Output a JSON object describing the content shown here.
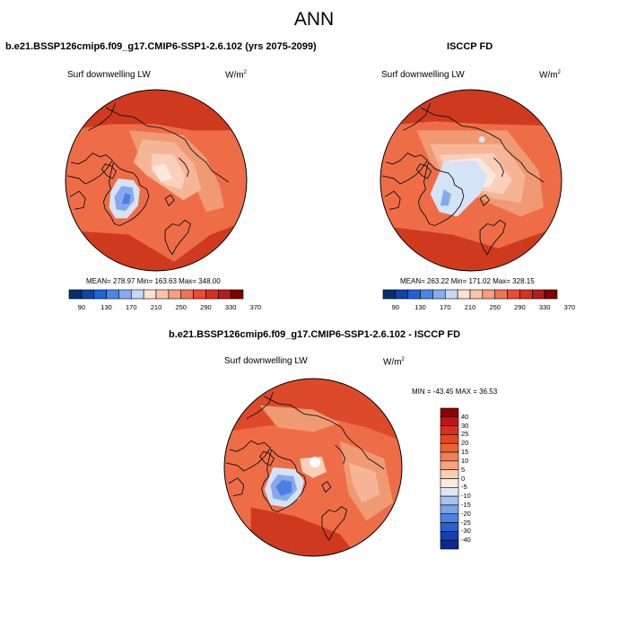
{
  "title": "ANN",
  "panels": [
    {
      "title": "b.e21.BSSP126cmip6.f09_g17.CMIP6-SSP1-2.6.102 (yrs 2075-2099)",
      "variable": "Surf downwelling LW",
      "units_base": "W/m",
      "units_sup": "2",
      "stats": "MEAN= 278.97  Min= 163.63  Max= 348.00"
    },
    {
      "title": "ISCCP FD",
      "variable": "Surf downwelling LW",
      "units_base": "W/m",
      "units_sup": "2",
      "stats": "MEAN= 263.22  Min= 171.02  Max= 328.15"
    },
    {
      "title": "b.e21.BSSP126cmip6.f09_g17.CMIP6-SSP1-2.6.102 - ISCCP FD",
      "variable": "Surf downwelling LW",
      "units_base": "W/m",
      "units_sup": "2",
      "stats": "MIN = -43.45 MAX =  36.53"
    }
  ],
  "colorbar_main": {
    "labels": [
      "90",
      "130",
      "170",
      "210",
      "250",
      "290",
      "330",
      "370"
    ],
    "colors": [
      "#08306b",
      "#0d47a1",
      "#1e63d6",
      "#4a86e8",
      "#86acee",
      "#c6d8f5",
      "#fbe3d4",
      "#f9c4a8",
      "#f59f7c",
      "#ef7654",
      "#e64e30",
      "#d7301f",
      "#b71c1c",
      "#7f0000"
    ]
  },
  "colorbar_diff": {
    "labels": [
      "40",
      "30",
      "25",
      "20",
      "15",
      "10",
      "5",
      "0",
      "-5",
      "-10",
      "-15",
      "-20",
      "-25",
      "-30",
      "-40"
    ],
    "colors": [
      "#8b0000",
      "#c0141b",
      "#d7301f",
      "#e4461f",
      "#ee6232",
      "#f28150",
      "#f7a57f",
      "#fbcfb4",
      "#fde8da",
      "#dbe6f6",
      "#a9c3ee",
      "#7aa3e8",
      "#4d82e0",
      "#2a5fd0",
      "#1240b0",
      "#0a2a8f"
    ]
  },
  "map_colors": {
    "base": "#ee6d47",
    "ocean_warm": "#f09a74",
    "warm_core": "#dd4a2a",
    "warm_hot": "#cf3a1f",
    "peach": "#f6b597",
    "light_peach": "#f8d0bc",
    "pale": "#fbe8dc",
    "pale_blue": "#d5e3f6",
    "mid_blue": "#86a9ec",
    "deep_blue": "#4b7fe4",
    "coast": "#111111"
  }
}
